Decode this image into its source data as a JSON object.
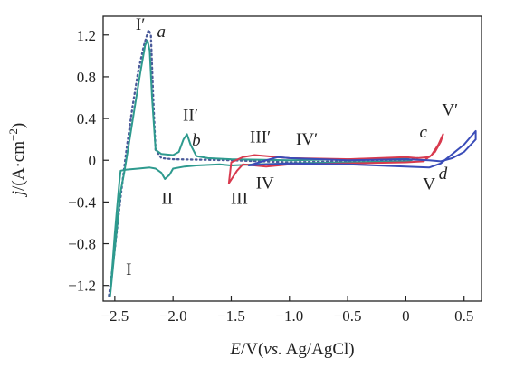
{
  "chart_data": {
    "type": "line",
    "title": "",
    "xlabel_parts": {
      "italic": "E",
      "mid": "/V(",
      "italic2": "vs.",
      "tail": " Ag/AgCl)"
    },
    "ylabel_parts": {
      "italic": "j",
      "mid": "/(A·cm",
      "sup": "−2",
      "tail": ")"
    },
    "xlim": [
      -2.6,
      0.65
    ],
    "ylim": [
      -1.35,
      1.38
    ],
    "x_ticks": [
      {
        "value": -2.5,
        "label": "−2.5"
      },
      {
        "value": -2.0,
        "label": "−2.0"
      },
      {
        "value": -1.5,
        "label": "−1.5"
      },
      {
        "value": -1.0,
        "label": "−1.0"
      },
      {
        "value": -0.5,
        "label": "−0.5"
      },
      {
        "value": 0.0,
        "label": "0"
      },
      {
        "value": 0.5,
        "label": "0.5"
      }
    ],
    "y_ticks": [
      {
        "value": 1.2,
        "label": "1.2"
      },
      {
        "value": 0.8,
        "label": "0.8"
      },
      {
        "value": 0.4,
        "label": "0.4"
      },
      {
        "value": 0.0,
        "label": "0"
      },
      {
        "value": -0.4,
        "label": "−0.4"
      },
      {
        "value": -0.8,
        "label": "−0.8"
      },
      {
        "value": -1.2,
        "label": "−1.2"
      }
    ],
    "series": [
      {
        "id": "a",
        "color": "#4a5a9a",
        "style": "dotted",
        "points": [
          [
            -2.55,
            -1.3
          ],
          [
            -2.5,
            -0.85
          ],
          [
            -2.45,
            -0.35
          ],
          [
            -2.4,
            0.1
          ],
          [
            -2.35,
            0.5
          ],
          [
            -2.3,
            0.85
          ],
          [
            -2.25,
            1.1
          ],
          [
            -2.21,
            1.25
          ],
          [
            -2.19,
            1.2
          ],
          [
            -2.17,
            0.6
          ],
          [
            -2.15,
            0.1
          ],
          [
            -2.1,
            0.02
          ],
          [
            -2.0,
            0.01
          ],
          [
            -1.5,
            0.0
          ],
          [
            -1.0,
            -0.02
          ],
          [
            -0.5,
            -0.01
          ],
          [
            0.0,
            0.0
          ],
          [
            0.1,
            0.02
          ]
        ]
      },
      {
        "id": "b",
        "color": "#2e9a8e",
        "style": "solid",
        "points": [
          [
            -2.54,
            -1.3
          ],
          [
            -2.52,
            -1.0
          ],
          [
            -2.5,
            -0.7
          ],
          [
            -2.48,
            -0.45
          ],
          [
            -2.46,
            -0.2
          ],
          [
            -2.45,
            -0.1
          ],
          [
            -2.4,
            -0.09
          ],
          [
            -2.3,
            -0.08
          ],
          [
            -2.2,
            -0.07
          ],
          [
            -2.15,
            -0.08
          ],
          [
            -2.1,
            -0.12
          ],
          [
            -2.07,
            -0.18
          ],
          [
            -2.03,
            -0.14
          ],
          [
            -2.0,
            -0.08
          ],
          [
            -1.9,
            -0.06
          ],
          [
            -1.8,
            -0.05
          ],
          [
            -1.6,
            -0.04
          ],
          [
            -1.5,
            -0.05
          ],
          [
            -1.3,
            -0.04
          ],
          [
            -1.0,
            -0.03
          ],
          [
            -0.5,
            -0.02
          ],
          [
            0.0,
            -0.01
          ],
          [
            0.05,
            0.0
          ],
          [
            0.0,
            0.02
          ],
          [
            -0.5,
            0.01
          ],
          [
            -1.0,
            0.0
          ],
          [
            -1.5,
            0.01
          ],
          [
            -1.7,
            0.02
          ],
          [
            -1.8,
            0.04
          ],
          [
            -1.85,
            0.15
          ],
          [
            -1.88,
            0.25
          ],
          [
            -1.91,
            0.2
          ],
          [
            -1.95,
            0.08
          ],
          [
            -2.0,
            0.05
          ],
          [
            -2.1,
            0.06
          ],
          [
            -2.15,
            0.1
          ],
          [
            -2.18,
            0.6
          ],
          [
            -2.2,
            1.05
          ],
          [
            -2.22,
            1.15
          ],
          [
            -2.24,
            1.1
          ],
          [
            -2.28,
            0.85
          ],
          [
            -2.33,
            0.5
          ],
          [
            -2.38,
            0.15
          ],
          [
            -2.42,
            -0.12
          ],
          [
            -2.45,
            -0.3
          ],
          [
            -2.5,
            -0.85
          ],
          [
            -2.54,
            -1.3
          ]
        ]
      },
      {
        "id": "c",
        "color": "#d83a4e",
        "style": "solid",
        "points": [
          [
            -1.52,
            -0.22
          ],
          [
            -1.45,
            -0.1
          ],
          [
            -1.4,
            -0.04
          ],
          [
            -1.3,
            -0.05
          ],
          [
            -1.2,
            -0.06
          ],
          [
            -1.0,
            -0.04
          ],
          [
            -0.5,
            -0.03
          ],
          [
            0.0,
            -0.02
          ],
          [
            0.15,
            -0.01
          ],
          [
            0.22,
            0.05
          ],
          [
            0.28,
            0.15
          ],
          [
            0.32,
            0.25
          ],
          [
            0.3,
            0.18
          ],
          [
            0.25,
            0.08
          ],
          [
            0.2,
            0.03
          ],
          [
            0.1,
            0.02
          ],
          [
            0.0,
            0.03
          ],
          [
            -0.5,
            0.01
          ],
          [
            -1.0,
            0.02
          ],
          [
            -1.2,
            0.04
          ],
          [
            -1.3,
            0.05
          ],
          [
            -1.4,
            0.03
          ],
          [
            -1.5,
            -0.02
          ],
          [
            -1.52,
            -0.22
          ]
        ]
      },
      {
        "id": "d",
        "color": "#3a4cb8",
        "style": "solid",
        "points": [
          [
            -1.35,
            -0.05
          ],
          [
            -1.2,
            -0.04
          ],
          [
            -1.0,
            -0.03
          ],
          [
            -0.5,
            -0.04
          ],
          [
            0.0,
            -0.06
          ],
          [
            0.2,
            -0.07
          ],
          [
            0.3,
            -0.03
          ],
          [
            0.4,
            0.06
          ],
          [
            0.5,
            0.15
          ],
          [
            0.6,
            0.28
          ],
          [
            0.6,
            0.2
          ],
          [
            0.5,
            0.08
          ],
          [
            0.4,
            0.02
          ],
          [
            0.3,
            -0.01
          ],
          [
            0.2,
            0.0
          ],
          [
            0.0,
            0.01
          ],
          [
            -0.5,
            0.0
          ],
          [
            -1.0,
            0.02
          ],
          [
            -1.1,
            0.03
          ],
          [
            -1.2,
            0.0
          ],
          [
            -1.35,
            -0.05
          ]
        ]
      }
    ],
    "peak_labels": [
      {
        "name": "peak-I-prime",
        "text": "I′",
        "x": -2.28,
        "y": 1.25
      },
      {
        "name": "peak-II-prime",
        "text": "II′",
        "x": -1.85,
        "y": 0.38
      },
      {
        "name": "peak-III-prime",
        "text": "III′",
        "x": -1.25,
        "y": 0.17
      },
      {
        "name": "peak-IV-prime",
        "text": "IV′",
        "x": -0.85,
        "y": 0.15
      },
      {
        "name": "peak-V-prime",
        "text": "V′",
        "x": 0.38,
        "y": 0.43
      },
      {
        "name": "peak-I",
        "text": "I",
        "x": -2.38,
        "y": -1.1
      },
      {
        "name": "peak-II",
        "text": "II",
        "x": -2.05,
        "y": -0.42
      },
      {
        "name": "peak-III",
        "text": "III",
        "x": -1.43,
        "y": -0.42
      },
      {
        "name": "peak-IV",
        "text": "IV",
        "x": -1.21,
        "y": -0.27
      },
      {
        "name": "peak-V",
        "text": "V",
        "x": 0.2,
        "y": -0.28
      }
    ],
    "curve_labels": [
      {
        "name": "curve-label-a",
        "text": "a",
        "x": -2.1,
        "y": 1.18
      },
      {
        "name": "curve-label-b",
        "text": "b",
        "x": -1.8,
        "y": 0.14
      },
      {
        "name": "curve-label-c",
        "text": "c",
        "x": 0.15,
        "y": 0.22
      },
      {
        "name": "curve-label-d",
        "text": "d",
        "x": 0.32,
        "y": -0.18
      }
    ]
  }
}
